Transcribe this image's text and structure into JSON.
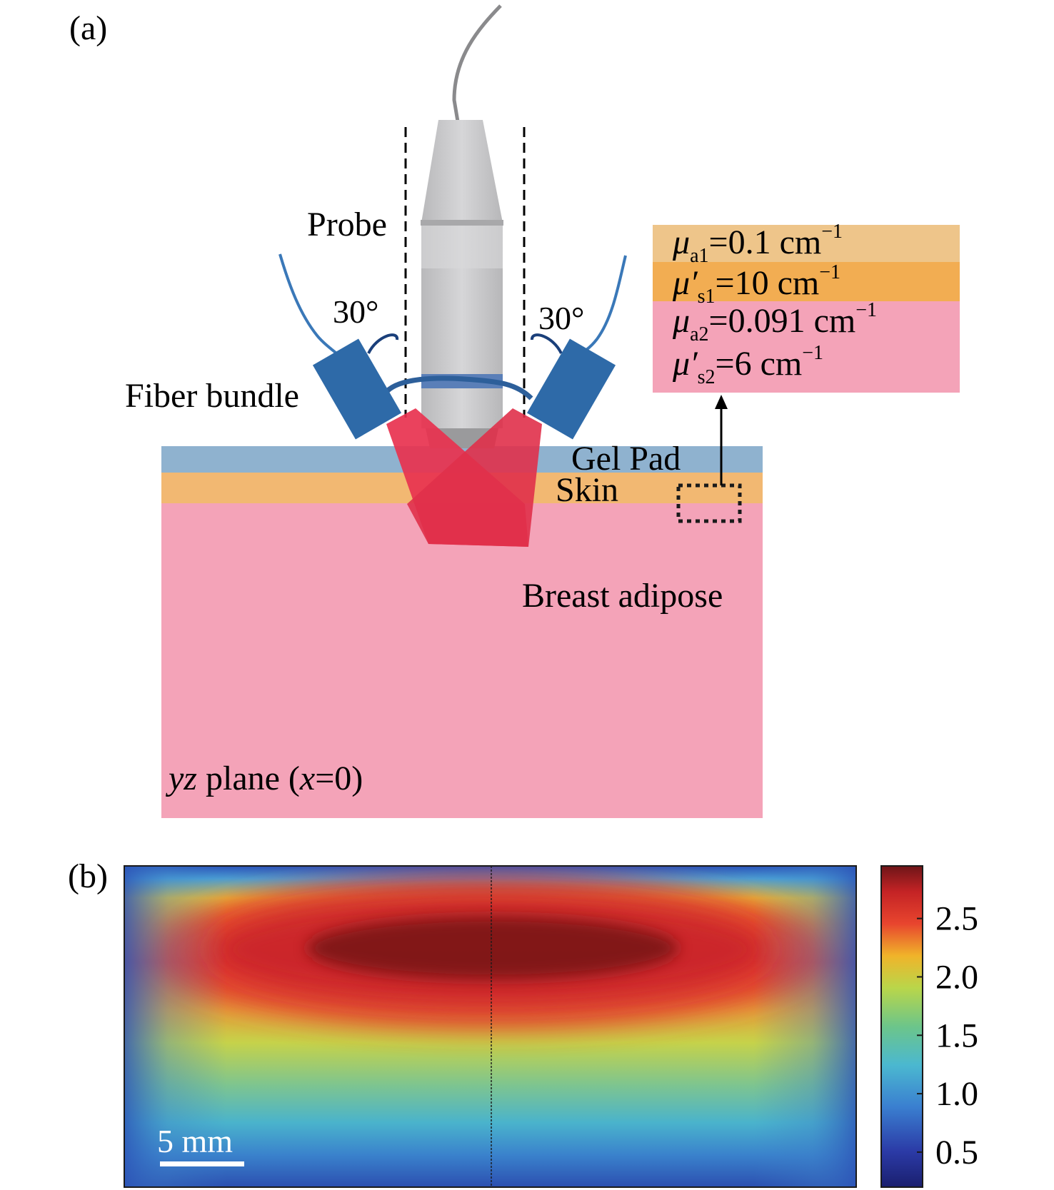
{
  "panel_a": {
    "label": "(a)",
    "labels": {
      "probe": "Probe",
      "fiber_bundle": "Fiber bundle",
      "angle_left": "30°",
      "angle_right": "30°",
      "gel_pad": "Gel Pad",
      "skin": "Skin",
      "breast_adipose": "Breast adipose",
      "plane_var": "yz",
      "plane_word": " plane (",
      "plane_x": "x",
      "plane_eq": "=0)"
    },
    "optical_properties": [
      {
        "symbol": "μ",
        "prime": false,
        "sub": "a1",
        "value": "=0.1 cm",
        "exp": "−1"
      },
      {
        "symbol": "μ",
        "prime": true,
        "sub": "s1",
        "value": "=10 cm",
        "exp": "−1"
      },
      {
        "symbol": "μ",
        "prime": false,
        "sub": "a2",
        "value": "=0.091 cm",
        "exp": "−1"
      },
      {
        "symbol": "μ",
        "prime": true,
        "sub": "s2",
        "value": "=6 cm",
        "exp": "−1"
      }
    ],
    "colors": {
      "gel_pad": "#8fb2cf",
      "skin": "#f2b872",
      "adipose": "#f4a3b8",
      "beam": "#e8324f",
      "fiber_holder": "#2e6aa8",
      "fiber_cable": "#3a78b8",
      "box_skin_top": "#eec58a",
      "box_skin_bottom": "#f2ad52",
      "box_adipose": "#f4a3b8"
    }
  },
  "panel_b": {
    "label": "(b)",
    "scale_bar_label": "5 mm",
    "colorbar": {
      "ticks": [
        "2.5",
        "2.0",
        "1.5",
        "1.0",
        "0.5"
      ],
      "tick_values": [
        2.5,
        2.0,
        1.5,
        1.0,
        0.5
      ],
      "min": 0.2,
      "max": 2.95,
      "colormap": "jet"
    }
  }
}
